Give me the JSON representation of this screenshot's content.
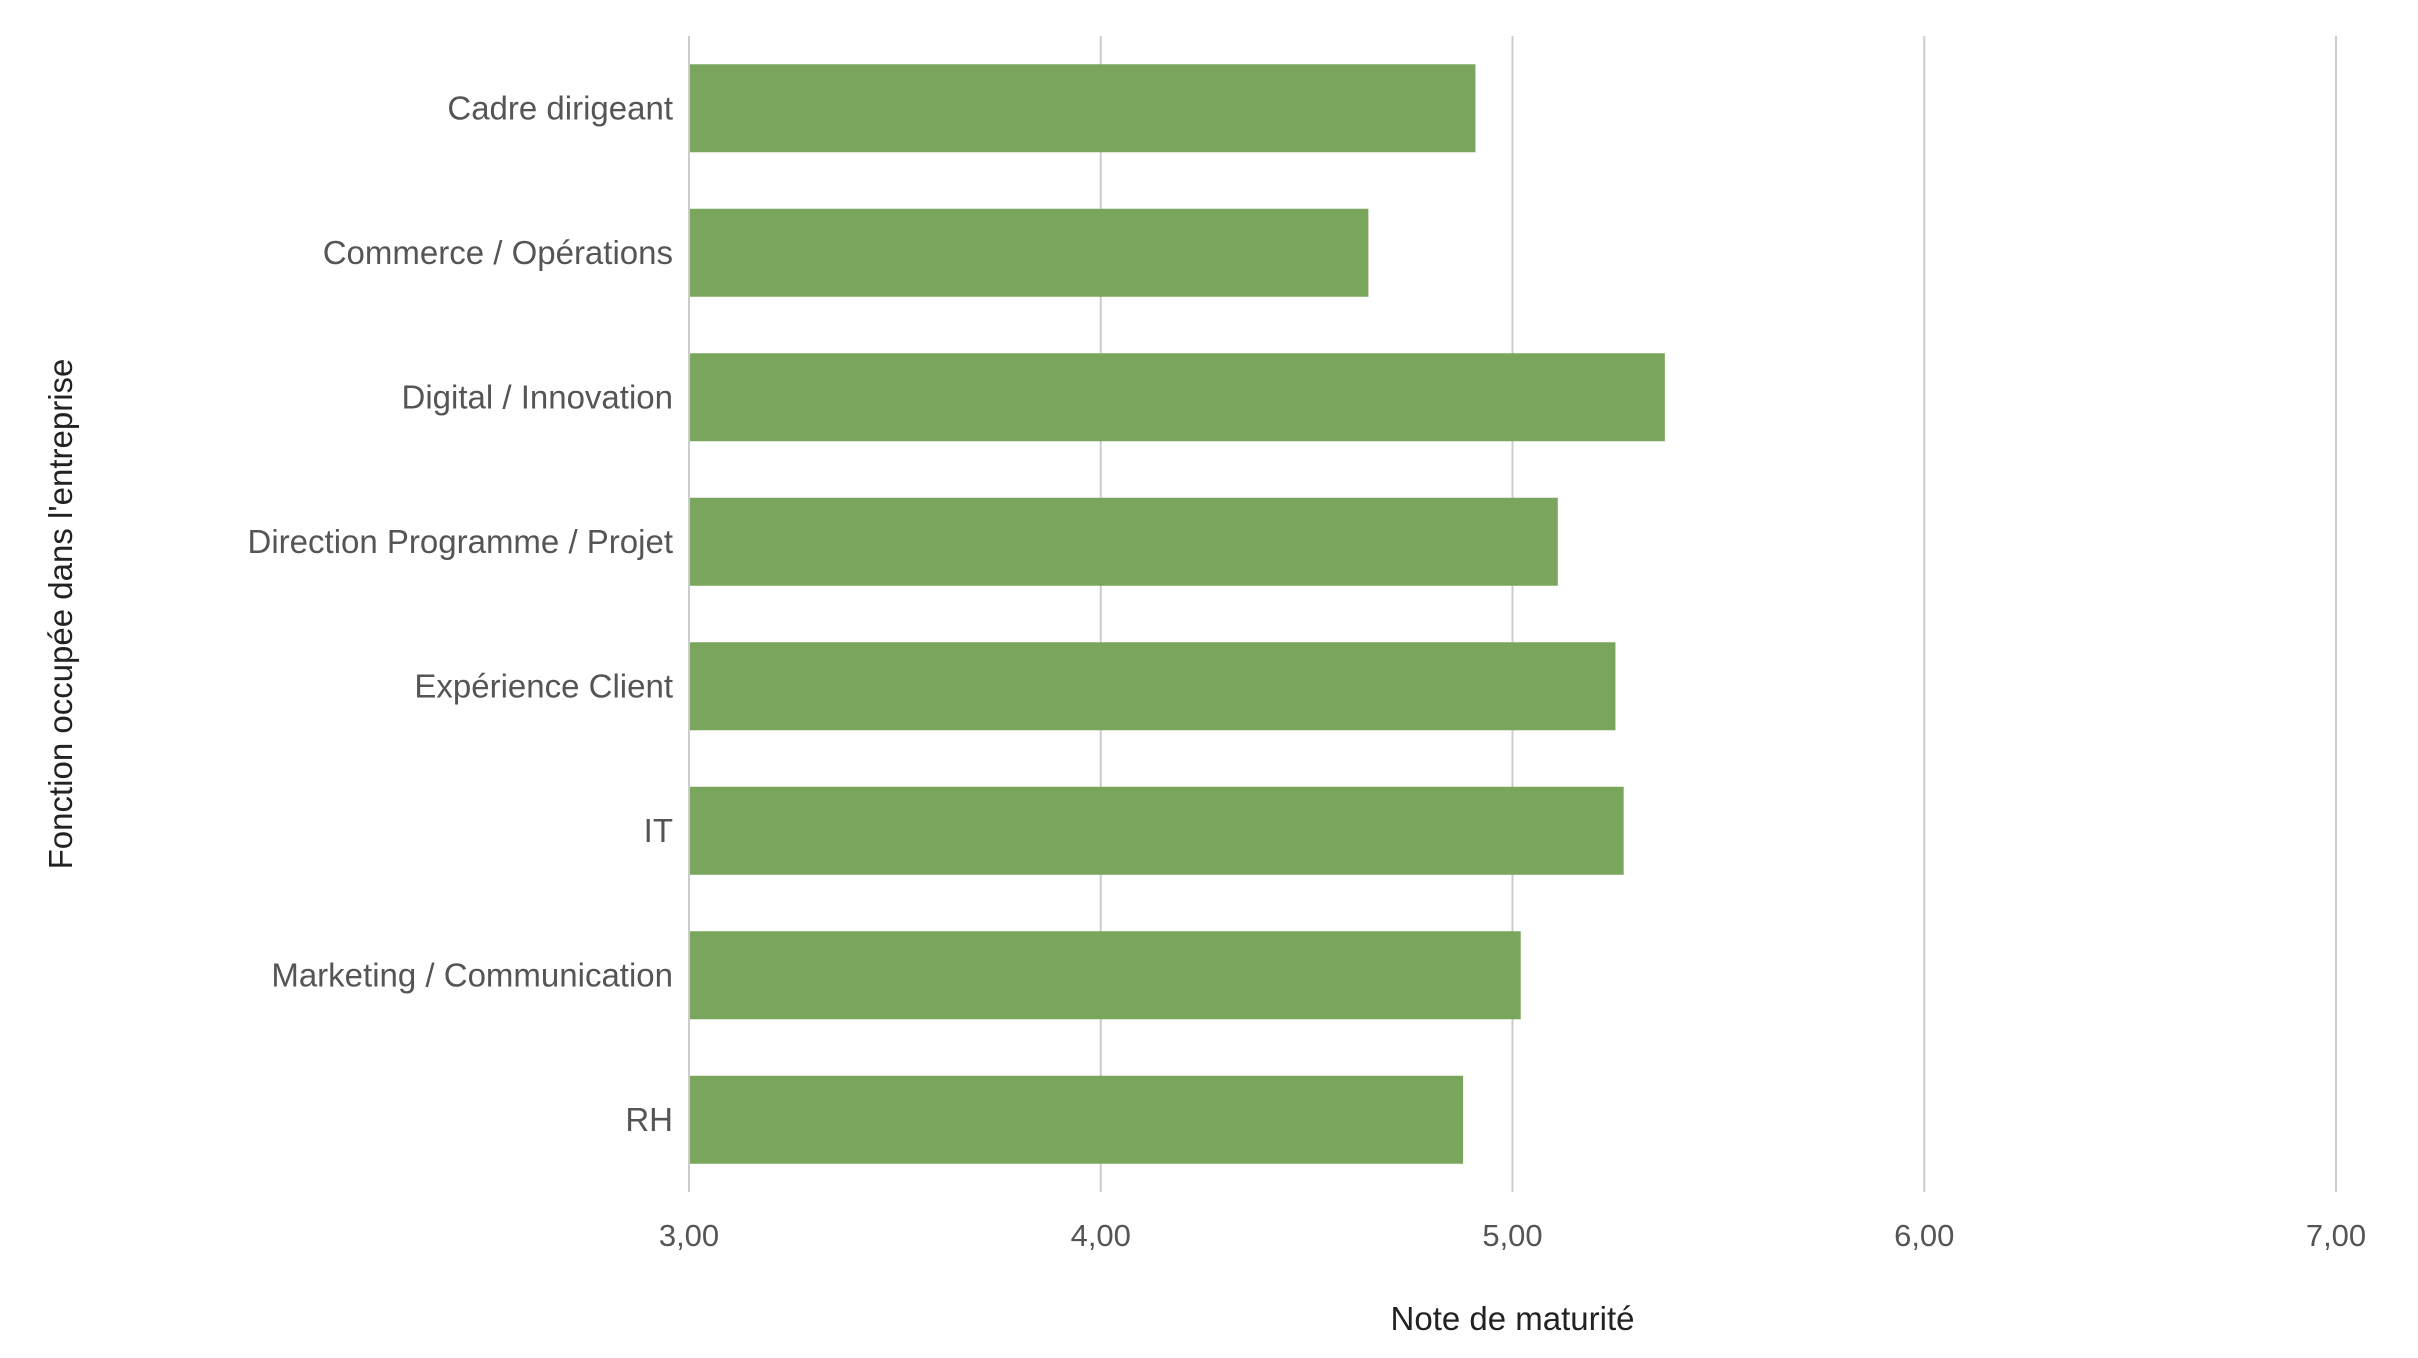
{
  "chart_data": {
    "type": "bar",
    "orientation": "horizontal",
    "categories": [
      "Cadre dirigeant",
      "Commerce / Opérations",
      "Digital / Innovation",
      "Direction Programme / Projet",
      "Expérience Client",
      "IT",
      "Marketing / Communication",
      "RH"
    ],
    "values": [
      4.91,
      4.65,
      5.37,
      5.11,
      5.25,
      5.27,
      5.02,
      4.88
    ],
    "xlim": [
      3,
      7
    ],
    "ticks": [
      3,
      4,
      5,
      6,
      7
    ],
    "tick_labels": [
      "3,00",
      "4,00",
      "5,00",
      "6,00",
      "7,00"
    ],
    "xlabel": "Note de maturité",
    "ylabel": "Fonction occupée dans l'entreprise",
    "title": "",
    "grid": true,
    "legend": "none",
    "bar_color": "#7aa55c"
  }
}
